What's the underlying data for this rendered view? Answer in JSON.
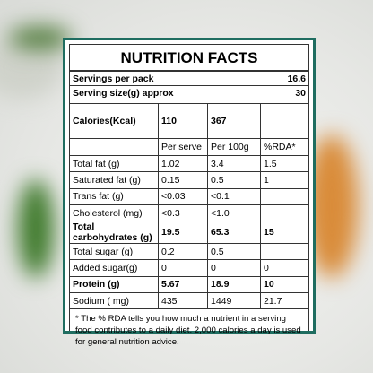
{
  "title": "NUTRITION FACTS",
  "servings": [
    {
      "label": "Servings per pack",
      "value": "16.6"
    },
    {
      "label": "Serving size(g) approx",
      "value": "30"
    }
  ],
  "calories": {
    "label": "Calories(Kcal)",
    "per_serve": "110",
    "per_100g": "367"
  },
  "table": {
    "header": [
      "Per serve",
      "Per 100g",
      "%RDA*"
    ],
    "rows": [
      {
        "cells": [
          "Total fat (g)",
          "1.02",
          "3.4",
          "1.5"
        ],
        "bold": false
      },
      {
        "cells": [
          "Saturated fat (g)",
          "0.15",
          "0.5",
          "1"
        ],
        "bold": false
      },
      {
        "cells": [
          "Trans fat (g)",
          "<0.03",
          "<0.1",
          null
        ],
        "bold": false
      },
      {
        "cells": [
          "Cholesterol (mg)",
          "<0.3",
          "<1.0",
          null
        ],
        "bold": false
      },
      {
        "cells": [
          "Total carbohydrates (g)",
          "19.5",
          "65.3",
          "15"
        ],
        "bold": true
      },
      {
        "cells": [
          "Total sugar (g)",
          "0.2",
          "0.5",
          null
        ],
        "bold": false
      },
      {
        "cells": [
          "Added sugar(g)",
          "0",
          "0",
          "0"
        ],
        "bold": false
      },
      {
        "cells": [
          "Protein (g)",
          "5.67",
          "18.9",
          "10"
        ],
        "bold": true
      },
      {
        "cells": [
          "Sodium ( mg)",
          "435",
          "1449",
          "21.7"
        ],
        "bold": false
      }
    ]
  },
  "footnote": "* The % RDA tells you how much a nutrient in a serving food contributes to a daily diet. 2,000 calories a day is used for general nutrition advice."
}
